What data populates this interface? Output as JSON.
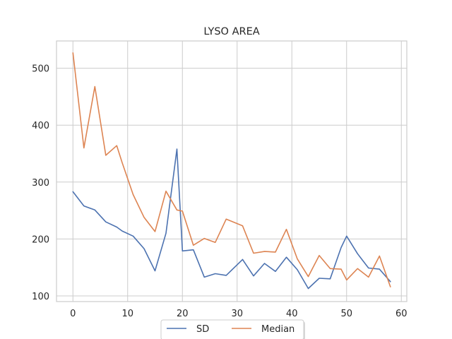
{
  "chart_data": {
    "type": "line",
    "title": "LYSO AREA",
    "xlabel": "",
    "ylabel": "",
    "xlim": [
      -3,
      61
    ],
    "ylim": [
      90,
      548
    ],
    "xticks": [
      0,
      10,
      20,
      30,
      40,
      50,
      60
    ],
    "yticks": [
      100,
      200,
      300,
      400,
      500
    ],
    "grid": true,
    "legend": {
      "placement": "bottom-center"
    },
    "series": [
      {
        "name": "SD",
        "color": "#4c72b0",
        "x": [
          0,
          2,
          4,
          6,
          8,
          9,
          11,
          13,
          15,
          17,
          19,
          20,
          22,
          24,
          26,
          28,
          31,
          33,
          35,
          37,
          39,
          41,
          43,
          45,
          47,
          49,
          50,
          52,
          54,
          56,
          58
        ],
        "y": [
          283,
          258,
          251,
          230,
          221,
          214,
          205,
          183,
          144,
          210,
          358,
          179,
          181,
          133,
          139,
          136,
          164,
          135,
          157,
          143,
          168,
          146,
          113,
          131,
          130,
          185,
          205,
          174,
          149,
          147,
          125
        ]
      },
      {
        "name": "Median",
        "color": "#dd8452",
        "x": [
          0,
          2,
          4,
          6,
          8,
          9,
          11,
          13,
          15,
          17,
          19,
          20,
          22,
          24,
          26,
          28,
          31,
          33,
          35,
          37,
          39,
          41,
          43,
          45,
          47,
          49,
          50,
          52,
          54,
          56,
          58
        ],
        "y": [
          527,
          360,
          468,
          347,
          364,
          334,
          278,
          238,
          213,
          284,
          251,
          249,
          189,
          201,
          194,
          235,
          223,
          175,
          178,
          177,
          217,
          165,
          134,
          171,
          148,
          147,
          128,
          148,
          133,
          170,
          116
        ]
      }
    ]
  }
}
